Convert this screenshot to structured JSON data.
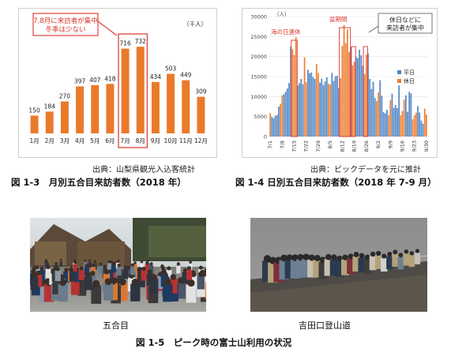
{
  "figure_1_3": {
    "caption": "図 1-3　月別五合目来訪者数（2018 年）",
    "source": "出典：山梨県観光入込客統計",
    "callout": [
      "7,8月に来訪者が集中",
      "冬季は少ない"
    ],
    "unit": "（千人）",
    "colors": {
      "bar": "#ea7a2a",
      "callout": "#d9342b"
    }
  },
  "figure_1_4": {
    "caption": "図 1-4 日別五合目来訪者数（2018 年 7-9 月）",
    "source": "出典：ビックデータを元に推計",
    "unit": "（人）",
    "annotations": {
      "umi_no_hi": "海の日連休",
      "obon": "盆期間",
      "callout": [
        "休日などに",
        "来訪者が集中"
      ]
    },
    "legend": [
      "平日",
      "休日"
    ],
    "colors": {
      "weekday": "#4f86c6",
      "holiday": "#ed7d31",
      "annotation": "#d9342b"
    }
  },
  "figure_1_5": {
    "caption": "図 1-5　ピーク時の富士山利用の状況",
    "photo_left_label": "五合目",
    "photo_right_label": "吉田口登山道"
  },
  "chart_data": [
    {
      "type": "bar",
      "title": "",
      "categories": [
        "1月",
        "2月",
        "3月",
        "4月",
        "5月",
        "6月",
        "7月",
        "8月",
        "9月",
        "10月",
        "11月",
        "12月"
      ],
      "values": [
        150,
        184,
        270,
        397,
        407,
        418,
        716,
        732,
        434,
        503,
        449,
        309
      ],
      "ylabel": "（千人）",
      "ylim": [
        0,
        800
      ],
      "highlight": [
        "7月",
        "8月"
      ],
      "grid": false
    },
    {
      "type": "bar",
      "title": "",
      "ylim": [
        0,
        30000
      ],
      "yticks": [
        0,
        5000,
        10000,
        15000,
        20000,
        25000,
        30000
      ],
      "xtick_labels": [
        "7/1",
        "7/8",
        "7/15",
        "7/22",
        "7/29",
        "8/5",
        "8/12",
        "8/19",
        "8/26",
        "9/2",
        "9/9",
        "9/16",
        "9/23",
        "9/30"
      ],
      "x_start": "7/1",
      "legend_position": "right",
      "series": [
        {
          "name": "平日",
          "key": "weekday"
        },
        {
          "name": "休日",
          "key": "holiday"
        }
      ],
      "values": [
        5800,
        4900,
        4600,
        5200,
        5400,
        7500,
        8200,
        10300,
        10600,
        11200,
        12000,
        13400,
        22500,
        21800,
        20400,
        24800,
        12700,
        13300,
        14400,
        13100,
        19800,
        13600,
        16700,
        15800,
        16000,
        14900,
        14400,
        18100,
        15900,
        13500,
        14500,
        12900,
        13800,
        14800,
        13200,
        13000,
        15900,
        13900,
        15100,
        15200,
        12100,
        14600,
        22600,
        27900,
        23400,
        26800,
        21200,
        22300,
        17800,
        18700,
        19900,
        19600,
        21700,
        20300,
        17700,
        15600,
        20500,
        20800,
        14400,
        11900,
        13700,
        9600,
        8900,
        11000,
        14100,
        10200,
        6100,
        5800,
        6700,
        5300,
        9100,
        10700,
        7200,
        7900,
        7100,
        12800,
        5300,
        6400,
        9200,
        10300,
        6200,
        11200,
        10800,
        4300,
        5300,
        6000,
        7600,
        6000,
        4000,
        3200,
        7000,
        5500
      ],
      "holiday_days": [
        "7/1",
        "7/7",
        "7/8",
        "7/14",
        "7/15",
        "7/16",
        "7/21",
        "7/22",
        "7/28",
        "7/29",
        "8/4",
        "8/5",
        "8/11",
        "8/12",
        "8/13",
        "8/14",
        "8/15",
        "8/16",
        "8/18",
        "8/19",
        "8/25",
        "8/26",
        "9/1",
        "9/2",
        "9/8",
        "9/9",
        "9/15",
        "9/16",
        "9/17",
        "9/22",
        "9/23",
        "9/24",
        "9/29",
        "9/30"
      ],
      "grid": true
    }
  ]
}
